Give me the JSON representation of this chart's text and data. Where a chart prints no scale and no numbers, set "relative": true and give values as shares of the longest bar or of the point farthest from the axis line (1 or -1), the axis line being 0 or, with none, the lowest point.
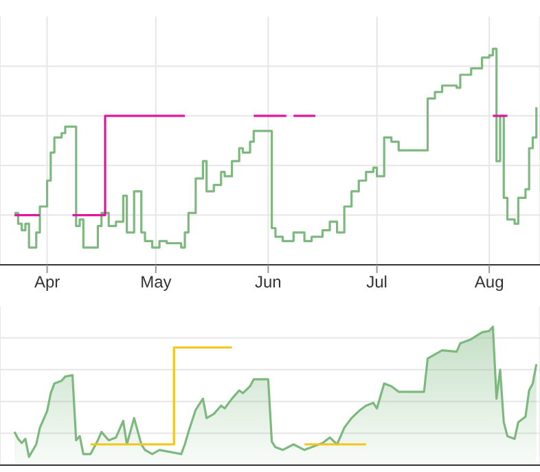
{
  "chart_data": [
    {
      "type": "step",
      "relative": true,
      "grid": true,
      "xlim": [
        "--03-19",
        "--08-15"
      ],
      "xticks": [
        {
          "value": "--04-01",
          "label": "Apr"
        },
        {
          "value": "--05-01",
          "label": "May"
        },
        {
          "value": "--06-01",
          "label": "Jun"
        },
        {
          "value": "--07-01",
          "label": "Jul"
        },
        {
          "value": "--08-01",
          "label": "Aug"
        }
      ],
      "series": [
        {
          "color": "#7db87f",
          "x": [
            "--03-23",
            "--03-24",
            "--03-25",
            "--03-26",
            "--03-27",
            "--03-29",
            "--03-30",
            "--04-01",
            "--04-02",
            "--04-03",
            "--04-05",
            "--04-06",
            "--04-08",
            "--04-09",
            "--04-10",
            "--04-11",
            "--04-13",
            "--04-15",
            "--04-16",
            "--04-18",
            "--04-20",
            "--04-22",
            "--04-23",
            "--04-25",
            "--04-27",
            "--04-28",
            "--04-30",
            "--05-02",
            "--05-04",
            "--05-08",
            "--05-09",
            "--05-10",
            "--05-12",
            "--05-14",
            "--05-15",
            "--05-17",
            "--05-19",
            "--05-20",
            "--05-22",
            "--05-24",
            "--05-25",
            "--05-27",
            "--05-28",
            "--06-01",
            "--06-02",
            "--06-03",
            "--06-05",
            "--06-08",
            "--06-11",
            "--06-13",
            "--06-16",
            "--06-18",
            "--06-20",
            "--06-22",
            "--06-24",
            "--06-26",
            "--06-28",
            "--06-30",
            "--07-01",
            "--07-03",
            "--07-05",
            "--07-07",
            "--07-14",
            "--07-15",
            "--07-17",
            "--07-19",
            "--07-23",
            "--07-24",
            "--07-27",
            "--07-30",
            "--08-01",
            "--08-02",
            "--08-03",
            "--08-04",
            "--08-05",
            "--08-06",
            "--08-08",
            "--08-09",
            "--08-11",
            "--08-12",
            "--08-13",
            "--08-14"
          ],
          "values": [
            0.24,
            0.19,
            0.16,
            0.19,
            0.08,
            0.15,
            0.27,
            0.39,
            0.52,
            0.59,
            0.61,
            0.64,
            0.64,
            0.18,
            0.21,
            0.08,
            0.08,
            0.18,
            0.24,
            0.18,
            0.2,
            0.32,
            0.15,
            0.34,
            0.15,
            0.11,
            0.08,
            0.11,
            0.1,
            0.08,
            0.15,
            0.24,
            0.4,
            0.48,
            0.34,
            0.37,
            0.43,
            0.41,
            0.48,
            0.54,
            0.52,
            0.57,
            0.62,
            0.62,
            0.17,
            0.13,
            0.11,
            0.15,
            0.11,
            0.13,
            0.16,
            0.2,
            0.15,
            0.27,
            0.34,
            0.39,
            0.43,
            0.45,
            0.41,
            0.59,
            0.57,
            0.53,
            0.53,
            0.77,
            0.8,
            0.83,
            0.82,
            0.88,
            0.91,
            0.96,
            0.97,
            1,
            0.48,
            0.69,
            0.31,
            0.21,
            0.19,
            0.31,
            0.35,
            0.54,
            0.59,
            0.73
          ]
        },
        {
          "color": "#e0169b",
          "x": [
            "--03-23",
            "--03-30",
            "--04-05",
            "--04-08",
            "--04-17",
            "--05-09",
            "--05-10",
            "--05-28",
            "--06-06",
            "--06-07",
            "--06-08",
            "--06-14",
            "--06-15",
            "--08-02",
            "--08-06"
          ],
          "values": [
            0.23,
            0.23,
            null,
            0.23,
            0.69,
            0.69,
            null,
            0.69,
            0.69,
            null,
            0.69,
            0.69,
            null,
            0.69,
            0.69
          ]
        }
      ]
    },
    {
      "type": "area",
      "relative": true,
      "grid": true,
      "tick_labels": false,
      "xlim": [
        "--03-19",
        "--08-15"
      ],
      "xticks": [
        {
          "value": "--04-01",
          "label": null
        },
        {
          "value": "--05-01",
          "label": null
        },
        {
          "value": "--06-01",
          "label": null
        },
        {
          "value": "--07-01",
          "label": null
        },
        {
          "value": "--08-01",
          "label": null
        }
      ],
      "series": [
        {
          "color": "#7db87f",
          "x": [
            "--03-23",
            "--03-24",
            "--03-25",
            "--03-26",
            "--03-27",
            "--03-29",
            "--03-30",
            "--04-01",
            "--04-02",
            "--04-03",
            "--04-05",
            "--04-06",
            "--04-08",
            "--04-09",
            "--04-10",
            "--04-11",
            "--04-13",
            "--04-15",
            "--04-16",
            "--04-18",
            "--04-20",
            "--04-22",
            "--04-23",
            "--04-25",
            "--04-27",
            "--04-28",
            "--04-30",
            "--05-02",
            "--05-04",
            "--05-08",
            "--05-09",
            "--05-10",
            "--05-12",
            "--05-14",
            "--05-15",
            "--05-17",
            "--05-19",
            "--05-20",
            "--05-22",
            "--05-24",
            "--05-25",
            "--05-27",
            "--05-28",
            "--06-01",
            "--06-02",
            "--06-03",
            "--06-05",
            "--06-08",
            "--06-11",
            "--06-13",
            "--06-16",
            "--06-18",
            "--06-20",
            "--06-22",
            "--06-24",
            "--06-26",
            "--06-28",
            "--06-30",
            "--07-01",
            "--07-03",
            "--07-05",
            "--07-07",
            "--07-14",
            "--07-15",
            "--07-17",
            "--07-19",
            "--07-23",
            "--07-24",
            "--07-27",
            "--07-30",
            "--08-01",
            "--08-02",
            "--08-03",
            "--08-04",
            "--08-05",
            "--08-06",
            "--08-08",
            "--08-09",
            "--08-11",
            "--08-12",
            "--08-13",
            "--08-14"
          ],
          "values": [
            0.24,
            0.19,
            0.16,
            0.19,
            0.06,
            0.15,
            0.27,
            0.39,
            0.52,
            0.59,
            0.61,
            0.64,
            0.65,
            0.18,
            0.21,
            0.08,
            0.08,
            0.18,
            0.24,
            0.18,
            0.2,
            0.32,
            0.15,
            0.34,
            0.15,
            0.11,
            0.08,
            0.11,
            0.1,
            0.08,
            0.15,
            0.24,
            0.4,
            0.48,
            0.34,
            0.37,
            0.43,
            0.41,
            0.48,
            0.54,
            0.52,
            0.57,
            0.62,
            0.62,
            0.17,
            0.13,
            0.11,
            0.15,
            0.11,
            0.13,
            0.16,
            0.2,
            0.15,
            0.27,
            0.34,
            0.39,
            0.43,
            0.45,
            0.41,
            0.59,
            0.57,
            0.53,
            0.53,
            0.77,
            0.8,
            0.83,
            0.82,
            0.88,
            0.91,
            0.96,
            0.97,
            1,
            0.48,
            0.69,
            0.31,
            0.21,
            0.19,
            0.31,
            0.35,
            0.54,
            0.59,
            0.73
          ]
        },
        {
          "type": "step",
          "color": "#f5c518",
          "x": [
            "--04-13",
            "--05-06",
            "--05-22",
            "--05-23",
            "--06-11",
            "--06-28"
          ],
          "values": [
            0.15,
            0.85,
            0.85,
            null,
            0.15,
            0.15
          ]
        }
      ]
    }
  ]
}
